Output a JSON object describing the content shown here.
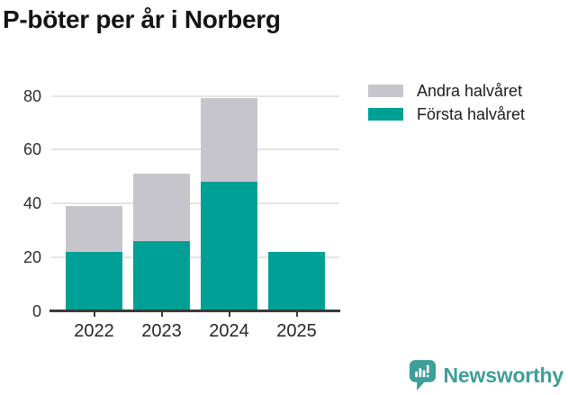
{
  "title": "P-böter per år i Norberg",
  "legend": {
    "items": [
      {
        "label": "Andra halvåret",
        "color": "#c7c5cc"
      },
      {
        "label": "Första halvåret",
        "color": "#00a096"
      }
    ]
  },
  "chart_data": {
    "type": "bar",
    "stacked": true,
    "title": "P-böter per år i Norberg",
    "categories": [
      "2022",
      "2023",
      "2024",
      "2025"
    ],
    "series": [
      {
        "name": "Första halvåret",
        "color": "#00a096",
        "values": [
          22,
          26,
          48,
          22
        ]
      },
      {
        "name": "Andra halvåret",
        "color": "#c7c5cc",
        "values": [
          17,
          25,
          31,
          0
        ]
      }
    ],
    "totals": [
      39,
      51,
      79,
      22
    ],
    "xlabel": "",
    "ylabel": "",
    "ylim": [
      0,
      80
    ],
    "yticks": [
      0,
      20,
      40,
      60,
      80
    ],
    "grid": true,
    "legend_position": "top-right"
  },
  "footer": {
    "brand_name": "Newsworthy"
  }
}
